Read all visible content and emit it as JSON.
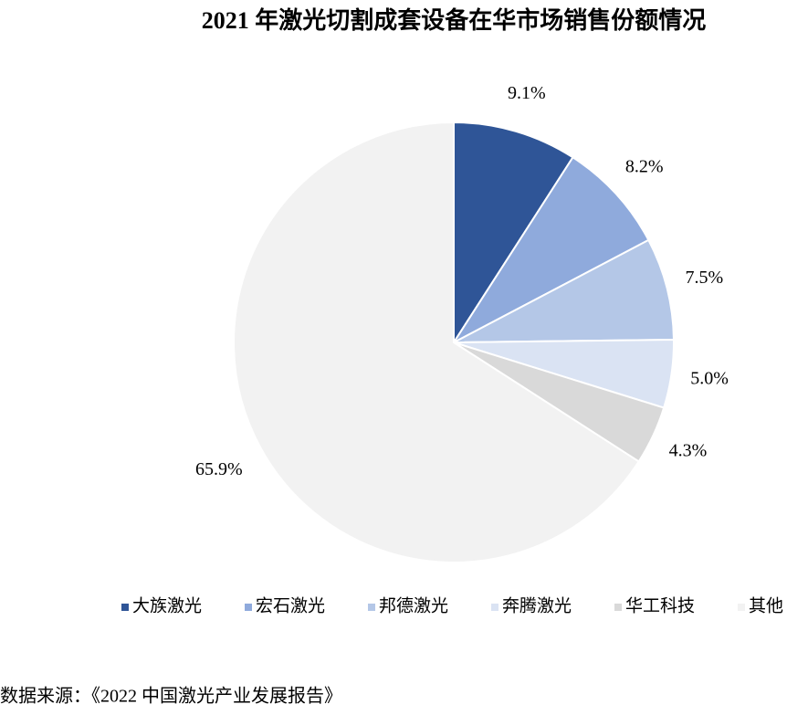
{
  "chart_data": {
    "type": "pie",
    "title": "2021 年激光切割成套设备在华市场销售份额情况",
    "categories": [
      "大族激光",
      "宏石激光",
      "邦德激光",
      "奔腾激光",
      "华工科技",
      "其他"
    ],
    "values": [
      9.1,
      8.2,
      7.5,
      5.0,
      4.3,
      65.9
    ],
    "value_labels": [
      "9.1%",
      "8.2%",
      "7.5%",
      "5.0%",
      "4.3%",
      "65.9%"
    ],
    "colors": [
      "#2f5597",
      "#8faadc",
      "#b4c7e7",
      "#dae3f3",
      "#d9d9d9",
      "#f2f2f2"
    ],
    "legend": "bottom",
    "source": "数据来源：《2022 中国激光产业发展报告》"
  }
}
